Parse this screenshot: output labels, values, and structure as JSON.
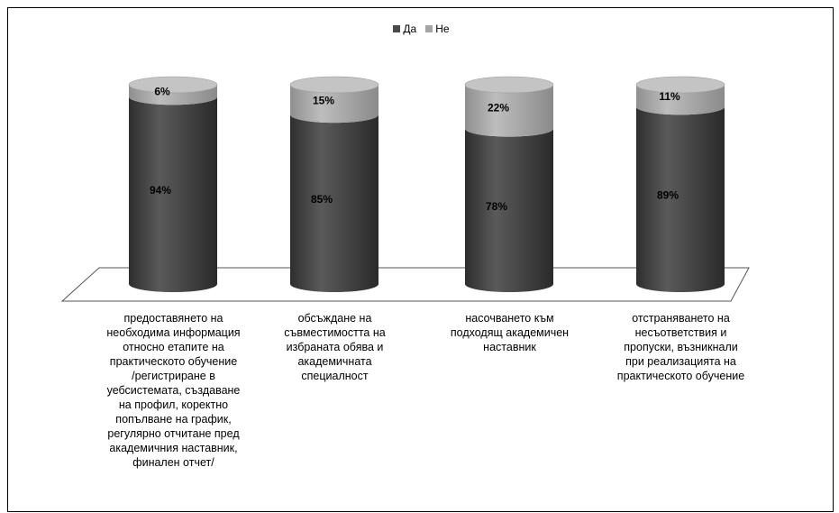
{
  "colors": {
    "da": "#4a4a4a",
    "ne": "#a6a6a6"
  },
  "chart_data": {
    "type": "bar",
    "stacked": true,
    "percent": true,
    "legend_position": "top",
    "categories": [
      "предоставянето на\nнеобходима информация\nотносно етапите на\nпрактическото обучение\n/регистриране в\nуебсистемата, създаване\nна профил, коректно\nпопълване на график,\nрегулярно отчитане пред\nакадемичния наставник,\nфинален отчет/",
      "обсъждане на\nсъвместимостта на\nизбраната обява и\nакадемичната\nспециалност",
      "насочването към\nподходящ академичен\nнаставник",
      "отстраняването на\nнесъответствия и\nпропуски, възникнали\nпри реализацията на\nпрактическото обучение"
    ],
    "series": [
      {
        "name": "Да",
        "values": [
          94,
          85,
          78,
          89
        ],
        "labels": [
          "94%",
          "85%",
          "78%",
          "89%"
        ]
      },
      {
        "name": "Не",
        "values": [
          6,
          15,
          22,
          11
        ],
        "labels": [
          "6%",
          "15%",
          "22%",
          "11%"
        ]
      }
    ],
    "ylim": [
      0,
      100
    ]
  }
}
